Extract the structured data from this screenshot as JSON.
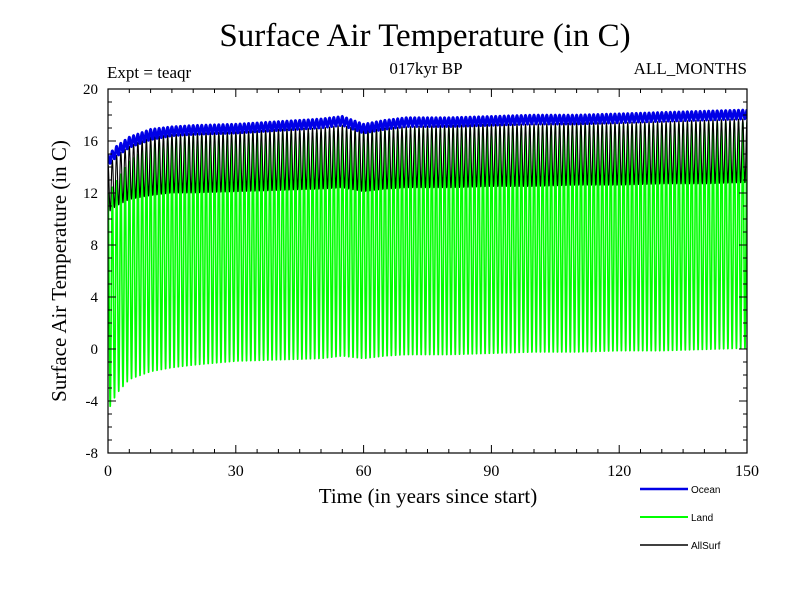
{
  "chart_data": {
    "type": "line",
    "title": "Surface Air Temperature (in C)",
    "subtitle": "017kyr BP",
    "left_note": "Expt = teaqr",
    "right_note": "ALL_MONTHS",
    "xlabel": "Time (in years since start)",
    "ylabel": "Surface Air Temperature (in C)",
    "xlim": [
      0,
      150
    ],
    "ylim": [
      -8,
      20
    ],
    "xticks": [
      0,
      30,
      60,
      90,
      120,
      150
    ],
    "yticks": [
      -8,
      -4,
      0,
      4,
      8,
      12,
      16,
      20
    ],
    "grid": false,
    "legend_position": "bottom-right",
    "cycles_per_year": 1,
    "x": [
      0,
      2,
      5,
      10,
      15,
      20,
      30,
      40,
      50,
      55,
      60,
      65,
      70,
      80,
      90,
      100,
      110,
      120,
      130,
      140,
      150
    ],
    "series": [
      {
        "name": "Ocean",
        "color": "#0000e6",
        "seasonal_max": [
          14.9,
          15.6,
          16.3,
          16.9,
          17.1,
          17.2,
          17.3,
          17.5,
          17.7,
          17.9,
          17.3,
          17.6,
          17.8,
          17.8,
          17.9,
          18.0,
          18.0,
          18.1,
          18.2,
          18.3,
          18.4
        ],
        "seasonal_min": [
          14.1,
          14.8,
          15.5,
          16.1,
          16.4,
          16.5,
          16.6,
          16.8,
          17.0,
          17.2,
          16.6,
          16.9,
          17.1,
          17.1,
          17.2,
          17.3,
          17.3,
          17.4,
          17.5,
          17.6,
          17.7
        ]
      },
      {
        "name": "Land",
        "color": "#00ff00",
        "seasonal_max": [
          12.0,
          13.0,
          14.5,
          15.8,
          16.2,
          16.4,
          16.5,
          16.6,
          16.7,
          16.9,
          16.6,
          16.8,
          16.9,
          17.0,
          17.0,
          17.1,
          17.2,
          17.2,
          17.3,
          17.4,
          17.5
        ],
        "seasonal_min": [
          -4.8,
          -3.5,
          -2.4,
          -1.8,
          -1.5,
          -1.3,
          -1.0,
          -0.9,
          -0.8,
          -0.6,
          -0.8,
          -0.6,
          -0.5,
          -0.5,
          -0.4,
          -0.3,
          -0.3,
          -0.2,
          -0.2,
          -0.1,
          0.0
        ]
      },
      {
        "name": "AllSurf",
        "color": "#000000",
        "seasonal_max": [
          14.2,
          14.9,
          15.6,
          16.3,
          16.5,
          16.6,
          16.7,
          16.9,
          17.0,
          17.2,
          16.8,
          17.0,
          17.1,
          17.2,
          17.3,
          17.3,
          17.4,
          17.4,
          17.5,
          17.6,
          17.7
        ],
        "seasonal_min": [
          10.5,
          11.0,
          11.5,
          11.8,
          12.0,
          12.0,
          12.1,
          12.2,
          12.3,
          12.4,
          12.1,
          12.3,
          12.4,
          12.4,
          12.5,
          12.5,
          12.6,
          12.6,
          12.7,
          12.7,
          12.8
        ]
      }
    ]
  }
}
